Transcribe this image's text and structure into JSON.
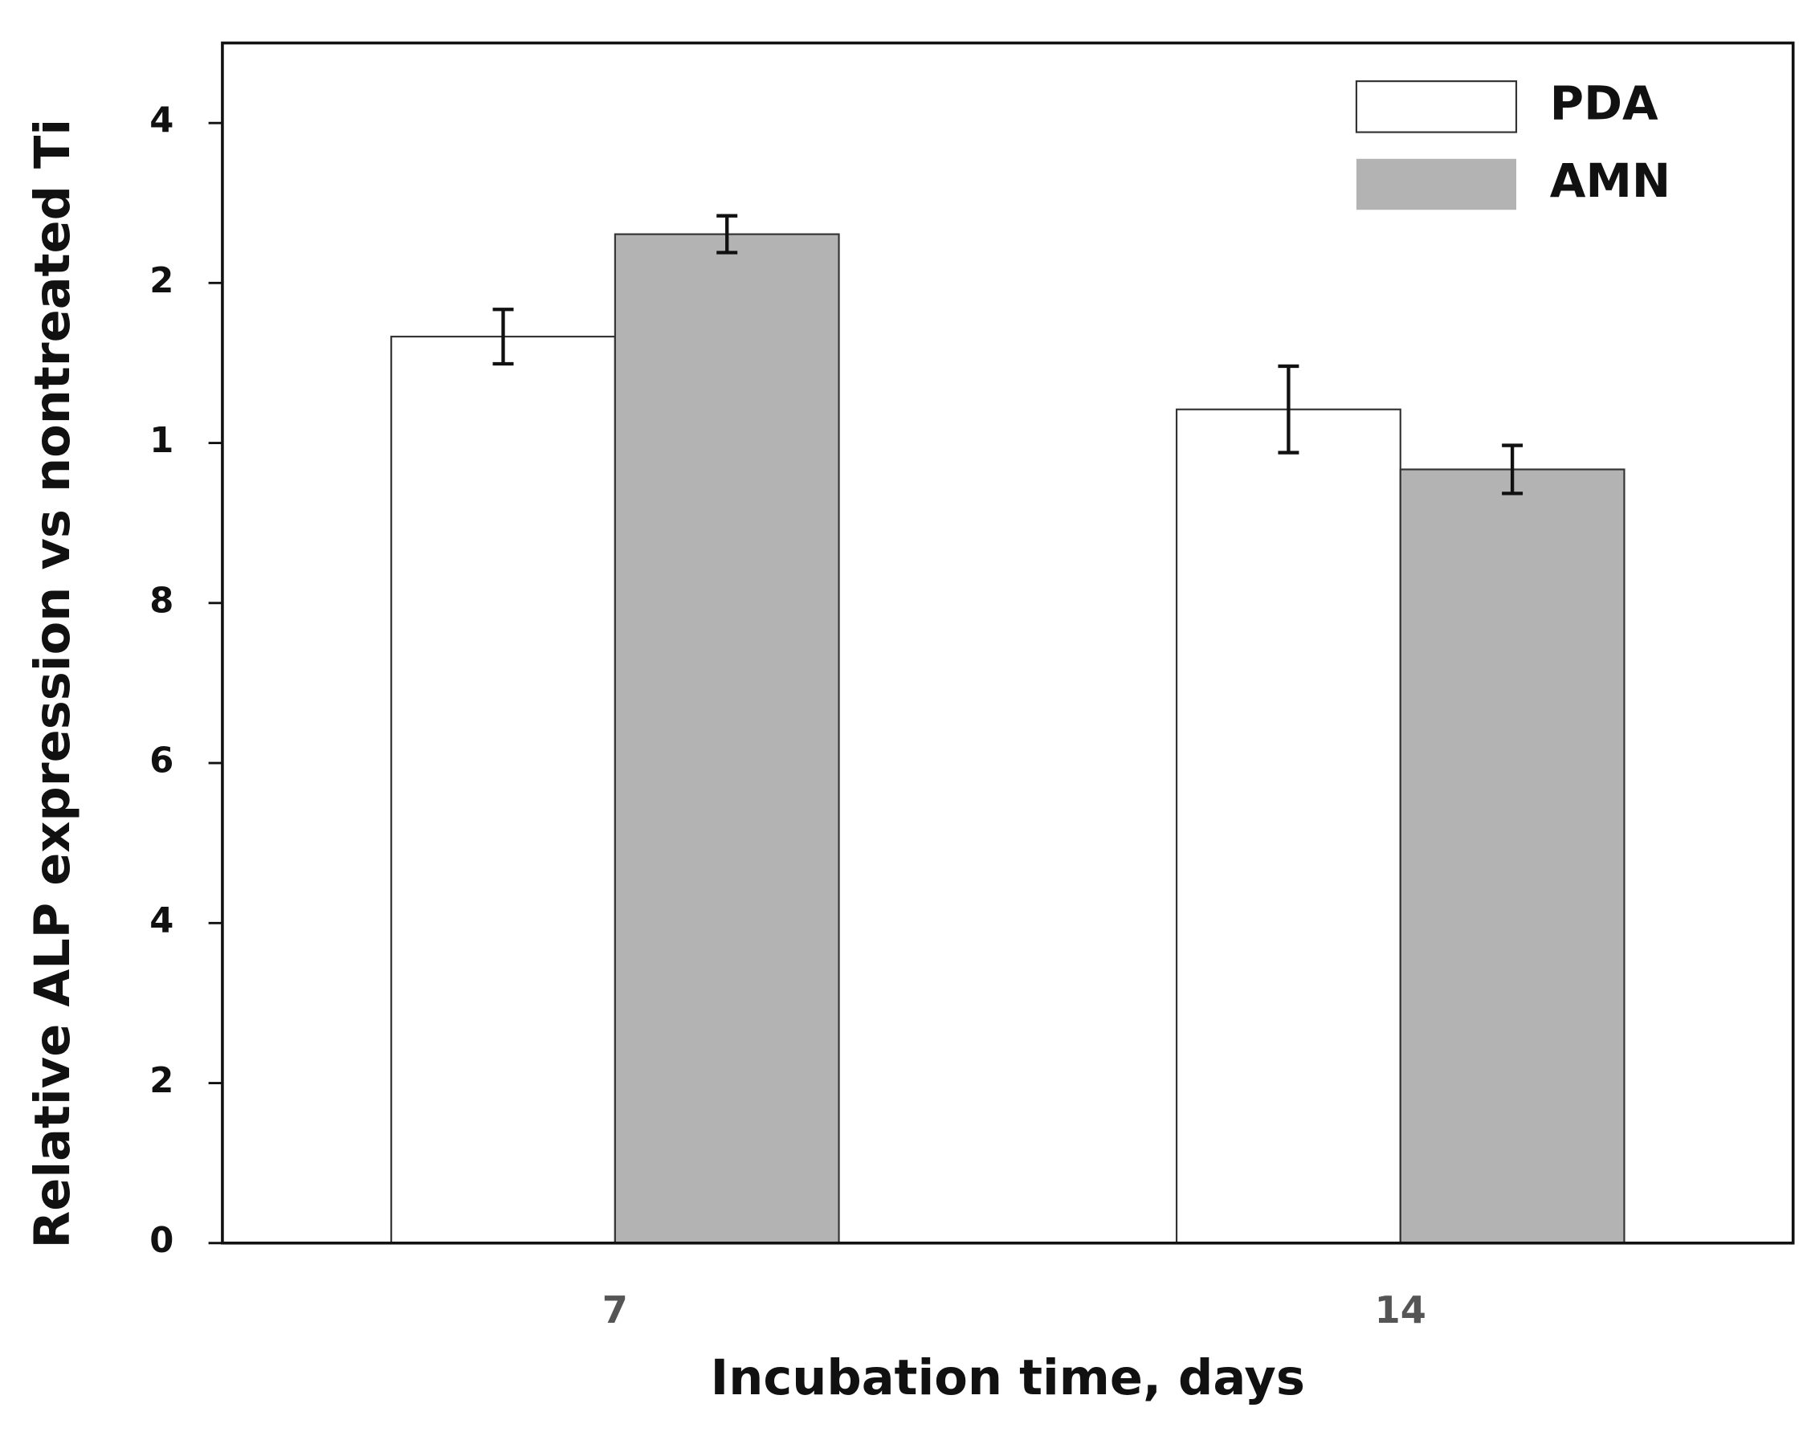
{
  "chart_data": {
    "type": "bar",
    "x_label": "Incubation time, days",
    "y_label": "Relative ALP expression vs nontreated Ti",
    "categories": [
      "7",
      "14"
    ],
    "series": [
      {
        "name": "PDA",
        "color": "#ffffff",
        "values": [
          11.33,
          10.42
        ],
        "errors": [
          0.34,
          0.54
        ]
      },
      {
        "name": "AMN",
        "color": "#b3b3b3",
        "values": [
          12.61,
          9.67
        ],
        "errors": [
          0.23,
          0.3
        ]
      }
    ],
    "ylim": [
      0,
      15
    ],
    "yticks": [
      0,
      2,
      4,
      6,
      8,
      {
        "value": 10,
        "label": "1"
      },
      {
        "value": 12,
        "label": "2"
      },
      {
        "value": 14,
        "label": "4"
      }
    ],
    "legend": "upper right",
    "grid": false
  }
}
